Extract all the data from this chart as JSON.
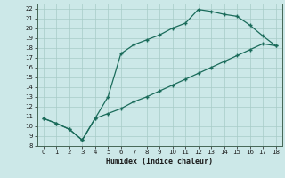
{
  "xlabel": "Humidex (Indice chaleur)",
  "background_color": "#cce8e8",
  "line_color": "#1a6b5a",
  "grid_color": "#a8ccc8",
  "curve1_x": [
    0,
    1,
    2,
    3,
    4,
    5,
    6,
    7,
    8,
    9,
    10,
    11,
    12,
    13,
    14,
    15,
    16,
    17,
    18
  ],
  "curve1_y": [
    10.8,
    10.3,
    9.7,
    8.6,
    10.8,
    13.0,
    17.4,
    18.3,
    18.8,
    19.3,
    20.0,
    20.5,
    21.9,
    21.7,
    21.4,
    21.2,
    20.3,
    19.2,
    18.2
  ],
  "curve2_x": [
    0,
    1,
    2,
    3,
    4,
    5,
    6,
    7,
    8,
    9,
    10,
    11,
    12,
    13,
    14,
    15,
    16,
    17,
    18
  ],
  "curve2_y": [
    10.8,
    10.3,
    9.7,
    8.6,
    10.8,
    11.3,
    11.8,
    12.5,
    13.0,
    13.6,
    14.2,
    14.8,
    15.4,
    16.0,
    16.6,
    17.2,
    17.8,
    18.4,
    18.2
  ],
  "xlim": [
    -0.5,
    18.5
  ],
  "ylim": [
    8,
    22.5
  ],
  "xticks": [
    0,
    1,
    2,
    3,
    4,
    5,
    6,
    7,
    8,
    9,
    10,
    11,
    12,
    13,
    14,
    15,
    16,
    17,
    18
  ],
  "yticks": [
    8,
    9,
    10,
    11,
    12,
    13,
    14,
    15,
    16,
    17,
    18,
    19,
    20,
    21,
    22
  ]
}
